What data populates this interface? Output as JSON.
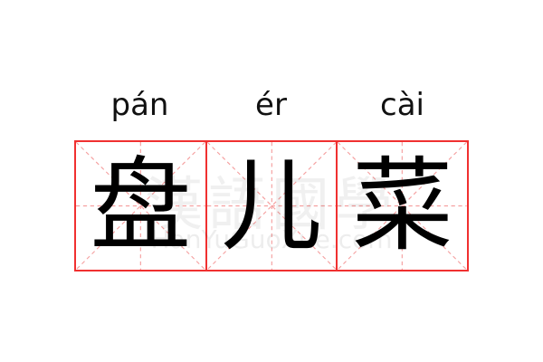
{
  "pinyin": [
    "pán",
    "ér",
    "cài"
  ],
  "characters": [
    "盘",
    "儿",
    "菜"
  ],
  "watermark": {
    "chinese": "漢語國學",
    "latin": "HanYuGuoXue.com"
  },
  "colors": {
    "grid_border": "#f03030",
    "guide_lines": "#f5a0a0",
    "text": "#000000"
  }
}
